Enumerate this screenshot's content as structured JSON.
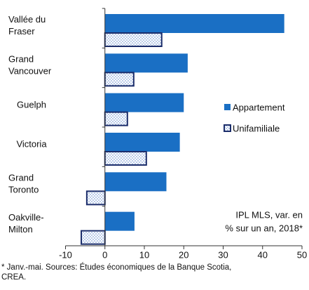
{
  "chart_data": {
    "type": "hbar",
    "categories": [
      [
        "Vallée du",
        "Fraser"
      ],
      [
        "Grand",
        "Vancouver"
      ],
      [
        "Guelph"
      ],
      [
        "Victoria"
      ],
      [
        "Grand",
        "Toronto"
      ],
      [
        "Oakville-",
        "Milton"
      ]
    ],
    "series": [
      {
        "name": "Appartement",
        "color": "#1a6fc4",
        "values": [
          45.5,
          21,
          20,
          19,
          15.6,
          7.5
        ]
      },
      {
        "name": "Unifamiliale",
        "color": "#1c2e6b",
        "values": [
          14.4,
          7.3,
          5.7,
          10.5,
          -4.6,
          -6
        ]
      }
    ],
    "xlim": [
      -10,
      50
    ],
    "xticks": [
      -10,
      0,
      10,
      20,
      30,
      40,
      50
    ],
    "annotation": [
      "IPL MLS, var. en",
      "% sur un an, 2018*"
    ],
    "footnote": [
      "* Janv.-mai. Sources: Études économiques de la Banque Scotia,",
      "CREA."
    ]
  }
}
